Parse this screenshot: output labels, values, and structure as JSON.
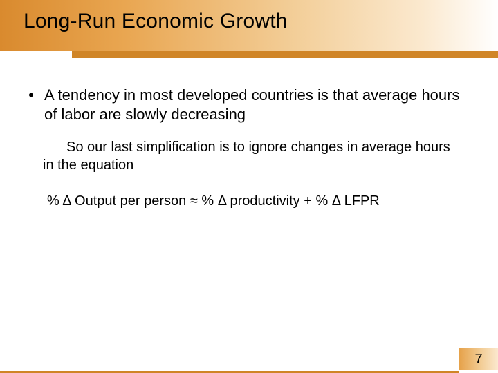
{
  "slide": {
    "title": "Long-Run Economic Growth",
    "bullet1": "A tendency in most developed countries is that average hours of labor are slowly decreasing",
    "sub1": "So our last simplification is to ignore changes in average hours in the equation",
    "equation": "% Δ Output per person ≈ % Δ productivity + % Δ LFPR",
    "page_number": "7"
  },
  "style": {
    "header_gradient_colors": [
      "#d98a2e",
      "#e9a651",
      "#f3cf9a",
      "#fbe9cf",
      "#ffffff"
    ],
    "accent_bar_color": "#d08527",
    "footer_gradient_colors": [
      "#e6a24a",
      "#f3cf9a",
      "#fbe9cf"
    ],
    "background_color": "#ffffff",
    "text_color": "#000000",
    "title_fontsize": 30,
    "body_fontsize": 22,
    "sub_fontsize": 20,
    "font_family": "Arial"
  }
}
